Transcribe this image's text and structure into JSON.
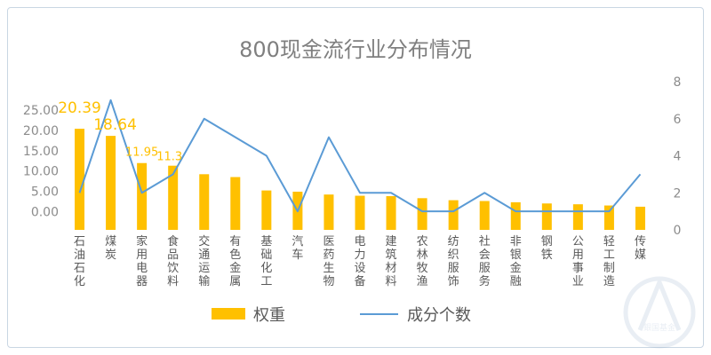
{
  "chart_data": {
    "type": "bar",
    "title": "800现金流行业分布情况",
    "categories": [
      "石油石化",
      "煤炭",
      "家用电器",
      "食品饮料",
      "交通运输",
      "有色金属",
      "基础化工",
      "汽车",
      "医药生物",
      "电力设备",
      "建筑材料",
      "农林牧渔",
      "纺织服饰",
      "社会服务",
      "非银金融",
      "钢铁",
      "公用事业",
      "轻工制造",
      "传媒"
    ],
    "series": [
      {
        "name": "权重",
        "type": "bar",
        "axis": "left",
        "color": "#FFC000",
        "values": [
          20.39,
          18.64,
          11.95,
          11.3,
          9.2,
          8.5,
          5.2,
          4.9,
          4.2,
          3.9,
          3.8,
          3.3,
          2.8,
          2.6,
          2.3,
          2.0,
          1.8,
          1.5,
          1.2
        ],
        "labels": [
          "20.39",
          "18.64",
          "11.95",
          "11.3"
        ]
      },
      {
        "name": "成分个数",
        "type": "line",
        "axis": "right",
        "color": "#5B9BD5",
        "values": [
          2,
          7,
          2,
          3,
          6,
          5,
          4,
          1,
          5,
          2,
          2,
          1,
          1,
          2,
          1,
          1,
          1,
          1,
          3
        ]
      }
    ],
    "y_left": {
      "ticks": [
        "0.00",
        "5.00",
        "10.00",
        "15.00",
        "20.00",
        "25.00"
      ],
      "min": -4.5,
      "max": 25
    },
    "y_right": {
      "ticks": [
        "0",
        "2",
        "4",
        "6",
        "8"
      ],
      "min": 0,
      "max": 8
    },
    "legend_position": "bottom",
    "grid": false
  }
}
